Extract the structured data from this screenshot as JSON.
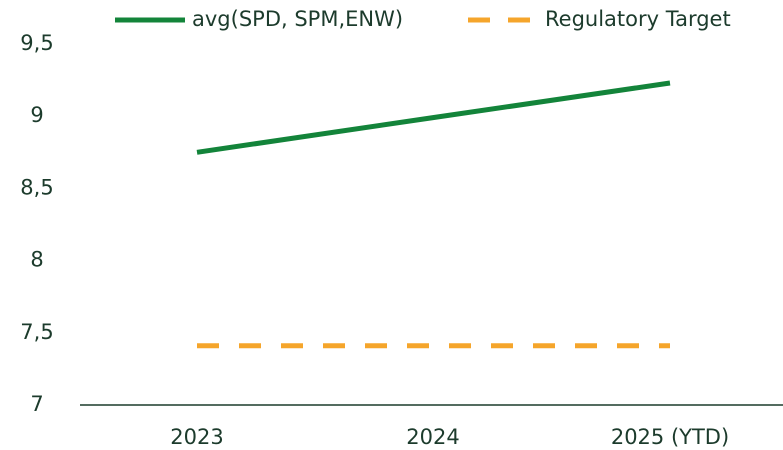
{
  "chart_data": {
    "type": "line",
    "categories": [
      "2023",
      "2024",
      "2025 (YTD)"
    ],
    "series": [
      {
        "name": "avg(SPD, SPM,ENW)",
        "color": "#13843a",
        "dash": false,
        "values": [
          8.75,
          8.99,
          9.23
        ]
      },
      {
        "name": "Regulatory Target",
        "color": "#f5a52b",
        "dash": true,
        "values": [
          7.41,
          7.41,
          7.41
        ]
      }
    ],
    "ylim": [
      7,
      9.5
    ],
    "yticks": [
      7,
      {
        "value": 7.5,
        "label": "7,5"
      },
      8,
      {
        "value": 8.5,
        "label": "8,5"
      },
      9,
      {
        "value": 9.5,
        "label": "9,5"
      }
    ],
    "grid": false,
    "legend": "top"
  }
}
